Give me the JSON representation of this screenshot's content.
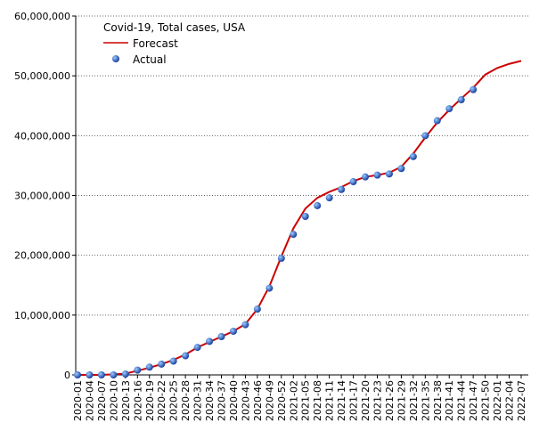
{
  "chart_data": {
    "type": "line",
    "legend_title": "Covid-19, Total cases, USA",
    "legend": "top-left",
    "categories": [
      "2020-01",
      "2020-04",
      "2020-07",
      "2020-10",
      "2020-13",
      "2020-16",
      "2020-19",
      "2020-22",
      "2020-25",
      "2020-28",
      "2020-31",
      "2020-34",
      "2020-37",
      "2020-40",
      "2020-43",
      "2020-46",
      "2020-49",
      "2020-52",
      "2021-02",
      "2021-05",
      "2021-08",
      "2021-11",
      "2021-14",
      "2021-17",
      "2021-20",
      "2021-23",
      "2021-26",
      "2021-29",
      "2021-32",
      "2021-35",
      "2021-38",
      "2021-41",
      "2021-44",
      "2021-47",
      "2021-50",
      "2022-01",
      "2022-04",
      "2022-07"
    ],
    "series": [
      {
        "name": "Forecast",
        "style": "line",
        "color": "#cc0000",
        "values": [
          0,
          0,
          0,
          0.1,
          0.2,
          0.7,
          1.2,
          1.8,
          2.5,
          3.4,
          4.6,
          5.5,
          6.4,
          7.3,
          8.5,
          11,
          14.8,
          19.8,
          24.5,
          27.8,
          29.6,
          30.6,
          31.4,
          32.4,
          33.1,
          33.4,
          33.8,
          34.8,
          37,
          39.7,
          42.2,
          44.3,
          46.2,
          48,
          50.2,
          51.3,
          52,
          52.5
        ]
      },
      {
        "name": "Actual",
        "style": "points",
        "color": "#1a5fd6",
        "values": [
          0,
          0,
          0,
          0,
          0.14,
          0.8,
          1.3,
          1.8,
          2.3,
          3.2,
          4.6,
          5.6,
          6.4,
          7.3,
          8.4,
          11,
          14.5,
          19.5,
          23.5,
          26.5,
          28.3,
          29.6,
          31,
          32.3,
          33.1,
          33.4,
          33.6,
          34.5,
          36.5,
          40,
          42.5,
          44.5,
          46,
          47.7,
          null,
          null,
          null,
          null
        ]
      }
    ],
    "ylim": [
      0,
      60000000
    ],
    "yticks": [
      {
        "value": 0,
        "label": "0"
      },
      {
        "value": 10000000,
        "label": "10,000,000"
      },
      {
        "value": 20000000,
        "label": "20,000,000"
      },
      {
        "value": 30000000,
        "label": "30,000,000"
      },
      {
        "value": 40000000,
        "label": "40,000,000"
      },
      {
        "value": 50000000,
        "label": "50,000,000"
      },
      {
        "value": 60000000,
        "label": "60,000,000"
      }
    ],
    "value_scale": 1000000,
    "grid": true
  }
}
